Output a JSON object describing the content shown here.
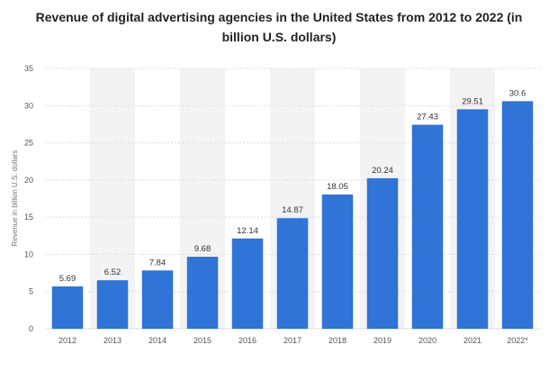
{
  "chart_data": {
    "type": "bar",
    "title": "Revenue of digital advertising agencies in the United States from 2012 to 2022 (in billion U.S. dollars)",
    "xlabel": "",
    "ylabel": "Revenue in billion U.S. dollars",
    "categories": [
      "2012",
      "2013",
      "2014",
      "2015",
      "2016",
      "2017",
      "2018",
      "2019",
      "2020",
      "2021",
      "2022*"
    ],
    "values": [
      5.69,
      6.52,
      7.84,
      9.68,
      12.14,
      14.87,
      18.05,
      20.24,
      27.43,
      29.51,
      30.6
    ],
    "value_labels": [
      "5.69",
      "6.52",
      "7.84",
      "9.68",
      "12.14",
      "14.87",
      "18.05",
      "20.24",
      "27.43",
      "29.51",
      "30.6"
    ],
    "yticks": [
      "0",
      "5",
      "10",
      "15",
      "20",
      "25",
      "30",
      "35"
    ],
    "ylim": [
      0,
      35
    ],
    "grid": true,
    "alternating_column_shading": true,
    "bar_color": "#2f74d6",
    "shade_color": "#f3f3f3"
  }
}
